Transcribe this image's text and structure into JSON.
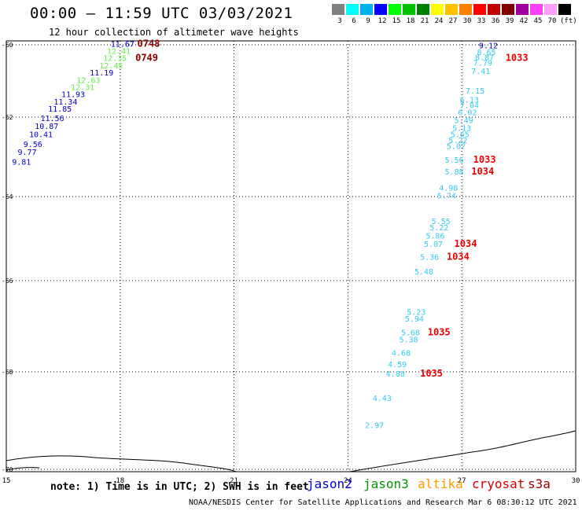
{
  "title": "00:00 – 11:59 UTC 03/03/2021",
  "subtitle": "12 hour collection of altimeter wave heights",
  "color_scale": {
    "labels": [
      "3",
      "6",
      "9",
      "12",
      "15",
      "18",
      "21",
      "24",
      "27",
      "30",
      "33",
      "36",
      "39",
      "42",
      "45",
      "70",
      "(ft)"
    ],
    "colors": [
      "#808080",
      "#00ffff",
      "#00b0f0",
      "#0000ff",
      "#00ff00",
      "#00c000",
      "#008000",
      "#ffff00",
      "#ffc000",
      "#ff8000",
      "#ff0000",
      "#c00000",
      "#800000",
      "#a000a0",
      "#ff40ff",
      "#ffa0ff",
      "#000000"
    ]
  },
  "axes": {
    "lon_labels": [
      "15",
      "18",
      "21",
      "24",
      "27",
      "30"
    ],
    "lat_labels": [
      "-60",
      "-62",
      "-64",
      "-66",
      "-68",
      "-70"
    ]
  },
  "satellites": {
    "jason2": {
      "label": "jason2",
      "color": "#0000cc"
    },
    "jason3": {
      "label": "jason3",
      "color": "#009900"
    },
    "altika": {
      "label": "altika",
      "color": "#ff9900"
    },
    "cryosat": {
      "label": "cryosat",
      "color": "#dd0000"
    },
    "s3a": {
      "label": "s3a",
      "color": "#990000"
    }
  },
  "observations": [
    {
      "lon": 17.75,
      "lat": -60.05,
      "text": "11.67",
      "color": "#0000cc"
    },
    {
      "lon": 17.65,
      "lat": -60.25,
      "text": "12.41",
      "color": "#66ee44"
    },
    {
      "lon": 17.55,
      "lat": -60.45,
      "text": "12.35",
      "color": "#66ee44"
    },
    {
      "lon": 17.45,
      "lat": -60.65,
      "text": "12.45",
      "color": "#66ee44"
    },
    {
      "lon": 17.2,
      "lat": -60.85,
      "text": "11.19",
      "color": "#0000cc"
    },
    {
      "lon": 16.85,
      "lat": -61.05,
      "text": "12.63",
      "color": "#66ee44"
    },
    {
      "lon": 16.7,
      "lat": -61.25,
      "text": "12.31",
      "color": "#66ee44"
    },
    {
      "lon": 16.45,
      "lat": -61.45,
      "text": "11.93",
      "color": "#0000cc"
    },
    {
      "lon": 16.25,
      "lat": -61.65,
      "text": "11.34",
      "color": "#0000cc"
    },
    {
      "lon": 16.1,
      "lat": -61.85,
      "text": "11.85",
      "color": "#0000cc"
    },
    {
      "lon": 15.9,
      "lat": -62.1,
      "text": "11.56",
      "color": "#0000cc"
    },
    {
      "lon": 15.75,
      "lat": -62.3,
      "text": "10.87",
      "color": "#0000cc"
    },
    {
      "lon": 15.6,
      "lat": -62.5,
      "text": "10.41",
      "color": "#0000cc"
    },
    {
      "lon": 15.45,
      "lat": -62.75,
      "text": "9.56",
      "color": "#0000cc"
    },
    {
      "lon": 15.3,
      "lat": -62.95,
      "text": "9.77",
      "color": "#0000cc"
    },
    {
      "lon": 15.15,
      "lat": -63.2,
      "text": "9.81",
      "color": "#0000cc"
    },
    {
      "lon": 18.45,
      "lat": -60.05,
      "text": "0748",
      "color": "#880000"
    },
    {
      "lon": 18.4,
      "lat": -60.45,
      "text": "0749",
      "color": "#880000"
    },
    {
      "lon": 27.45,
      "lat": -60.1,
      "text": "9.12",
      "color": "#0000cc"
    },
    {
      "lon": 27.4,
      "lat": -60.28,
      "text": "8.65",
      "color": "#33ccee"
    },
    {
      "lon": 27.35,
      "lat": -60.42,
      "text": "8.87",
      "color": "#33ccee"
    },
    {
      "lon": 27.3,
      "lat": -60.58,
      "text": "7.79",
      "color": "#33ccee"
    },
    {
      "lon": 27.25,
      "lat": -60.8,
      "text": "7.41",
      "color": "#33ccee"
    },
    {
      "lon": 28.15,
      "lat": -60.45,
      "text": "1033",
      "color": "#ee0000"
    },
    {
      "lon": 27.1,
      "lat": -61.35,
      "text": "7.15",
      "color": "#33ccee"
    },
    {
      "lon": 26.95,
      "lat": -61.6,
      "text": "6.13",
      "color": "#33ccee"
    },
    {
      "lon": 26.95,
      "lat": -61.75,
      "text": "7.04",
      "color": "#33ccee"
    },
    {
      "lon": 26.9,
      "lat": -61.95,
      "text": "6.02",
      "color": "#33ccee"
    },
    {
      "lon": 26.8,
      "lat": -62.15,
      "text": "5.49",
      "color": "#33ccee"
    },
    {
      "lon": 26.75,
      "lat": -62.35,
      "text": "5.13",
      "color": "#33ccee"
    },
    {
      "lon": 26.7,
      "lat": -62.5,
      "text": "5.65",
      "color": "#33ccee"
    },
    {
      "lon": 26.65,
      "lat": -62.65,
      "text": "5.22",
      "color": "#33ccee"
    },
    {
      "lon": 26.6,
      "lat": -62.8,
      "text": "5.07",
      "color": "#33ccee"
    },
    {
      "lon": 26.55,
      "lat": -63.15,
      "text": "5.56",
      "color": "#33ccee"
    },
    {
      "lon": 26.55,
      "lat": -63.45,
      "text": "5.88",
      "color": "#33ccee"
    },
    {
      "lon": 27.3,
      "lat": -63.15,
      "text": "1033",
      "color": "#ee0000"
    },
    {
      "lon": 27.25,
      "lat": -63.45,
      "text": "1034",
      "color": "#ee0000"
    },
    {
      "lon": 26.4,
      "lat": -63.85,
      "text": "4.98",
      "color": "#33ccee"
    },
    {
      "lon": 26.35,
      "lat": -64.05,
      "text": "5.74",
      "color": "#33ccee"
    },
    {
      "lon": 26.2,
      "lat": -64.65,
      "text": "5.55",
      "color": "#33ccee"
    },
    {
      "lon": 26.15,
      "lat": -64.8,
      "text": "5.22",
      "color": "#33ccee"
    },
    {
      "lon": 26.05,
      "lat": -65.0,
      "text": "5.86",
      "color": "#33ccee"
    },
    {
      "lon": 26.0,
      "lat": -65.2,
      "text": "5.07",
      "color": "#33ccee"
    },
    {
      "lon": 26.8,
      "lat": -65.2,
      "text": "1034",
      "color": "#ee0000"
    },
    {
      "lon": 25.9,
      "lat": -65.5,
      "text": "5.36",
      "color": "#33ccee"
    },
    {
      "lon": 26.6,
      "lat": -65.5,
      "text": "1034",
      "color": "#ee0000"
    },
    {
      "lon": 25.75,
      "lat": -65.85,
      "text": "5.48",
      "color": "#33ccee"
    },
    {
      "lon": 25.55,
      "lat": -66.75,
      "text": "5.23",
      "color": "#33ccee"
    },
    {
      "lon": 25.5,
      "lat": -66.9,
      "text": "5.94",
      "color": "#33ccee"
    },
    {
      "lon": 25.4,
      "lat": -67.2,
      "text": "5.68",
      "color": "#33ccee"
    },
    {
      "lon": 25.35,
      "lat": -67.35,
      "text": "5.38",
      "color": "#33ccee"
    },
    {
      "lon": 26.1,
      "lat": -67.2,
      "text": "1035",
      "color": "#ee0000"
    },
    {
      "lon": 25.15,
      "lat": -67.65,
      "text": "4.68",
      "color": "#33ccee"
    },
    {
      "lon": 25.05,
      "lat": -67.9,
      "text": "4.59",
      "color": "#33ccee"
    },
    {
      "lon": 25.0,
      "lat": -68.1,
      "text": "4.88",
      "color": "#33ccee"
    },
    {
      "lon": 25.9,
      "lat": -68.1,
      "text": "1035",
      "color": "#ee0000"
    },
    {
      "lon": 24.65,
      "lat": -68.6,
      "text": "4.43",
      "color": "#33ccee"
    },
    {
      "lon": 24.45,
      "lat": -69.15,
      "text": "2.97",
      "color": "#33ccee"
    }
  ],
  "note": "note: 1) Time is in UTC; 2) SWH is in feet",
  "credit": "NOAA/NESDIS Center for Satellite Applications and Research   Mar  6 08:30:12 UTC 2021"
}
